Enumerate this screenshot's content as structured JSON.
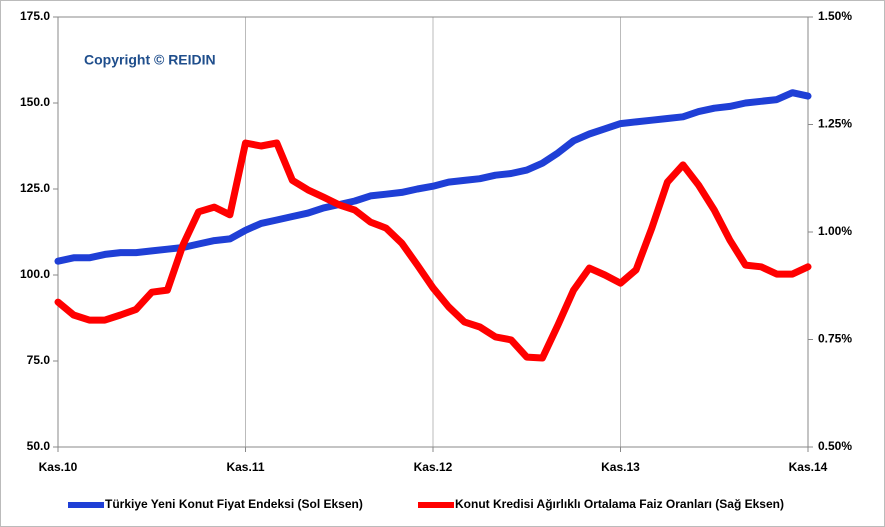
{
  "chart_data": {
    "type": "line",
    "annotation": "Copyright © REIDIN",
    "categories": [
      "Kas.10",
      null,
      null,
      null,
      null,
      null,
      null,
      null,
      null,
      null,
      null,
      null,
      "Kas.11",
      null,
      null,
      null,
      null,
      null,
      null,
      null,
      null,
      null,
      null,
      null,
      "Kas.12",
      null,
      null,
      null,
      null,
      null,
      null,
      null,
      null,
      null,
      null,
      null,
      "Kas.13",
      null,
      null,
      null,
      null,
      null,
      null,
      null,
      null,
      null,
      null,
      null,
      "Kas.14"
    ],
    "series": [
      {
        "name": "Türkiye Yeni Konut Fiyat Endeksi (Sol Eksen)",
        "color": "#1f3fd6",
        "axis": "y",
        "values": [
          104,
          105,
          105,
          106,
          106.5,
          106.5,
          107,
          107.5,
          108,
          109,
          110,
          110.5,
          113,
          115,
          116,
          117,
          118,
          119.5,
          120.5,
          121.5,
          123,
          123.5,
          124,
          125,
          125.8,
          127,
          127.5,
          128,
          129,
          129.5,
          130.5,
          132.5,
          135.5,
          139,
          141,
          142.5,
          144,
          144.5,
          145,
          145.5,
          146,
          147.5,
          148.5,
          149,
          150,
          150.5,
          151,
          153,
          152
        ]
      },
      {
        "name": "Konut Kredisi Ağırlıklı Ortalama Faiz Oranları (Sağ Eksen)",
        "color": "#ff0000",
        "axis": "y2",
        "values": [
          0.837,
          0.807,
          0.795,
          0.795,
          0.807,
          0.82,
          0.86,
          0.865,
          0.97,
          1.047,
          1.058,
          1.04,
          1.207,
          1.2,
          1.207,
          1.12,
          1.098,
          1.081,
          1.063,
          1.051,
          1.023,
          1.009,
          0.974,
          0.923,
          0.87,
          0.826,
          0.791,
          0.779,
          0.756,
          0.749,
          0.709,
          0.707,
          0.784,
          0.865,
          0.916,
          0.9,
          0.881,
          0.912,
          1.009,
          1.116,
          1.156,
          1.109,
          1.051,
          0.981,
          0.923,
          0.919,
          0.902,
          0.902,
          0.919
        ]
      }
    ],
    "ylim": [
      50,
      175
    ],
    "yticks": [
      {
        "value": 50,
        "label": "50.0"
      },
      {
        "value": 75,
        "label": "75.0"
      },
      {
        "value": 100,
        "label": "100.0"
      },
      {
        "value": 125,
        "label": "125.0"
      },
      {
        "value": 150,
        "label": "150.0"
      },
      {
        "value": 175,
        "label": "175.0"
      }
    ],
    "y2lim": [
      0.5,
      1.5
    ],
    "y2ticks": [
      {
        "value": 0.5,
        "label": "0.50%"
      },
      {
        "value": 0.75,
        "label": "0.75%"
      },
      {
        "value": 1,
        "label": "1.00%"
      },
      {
        "value": 1.25,
        "label": "1.25%"
      },
      {
        "value": 1.5,
        "label": "1.50%"
      }
    ],
    "grid": "x",
    "legend": "bottom"
  }
}
